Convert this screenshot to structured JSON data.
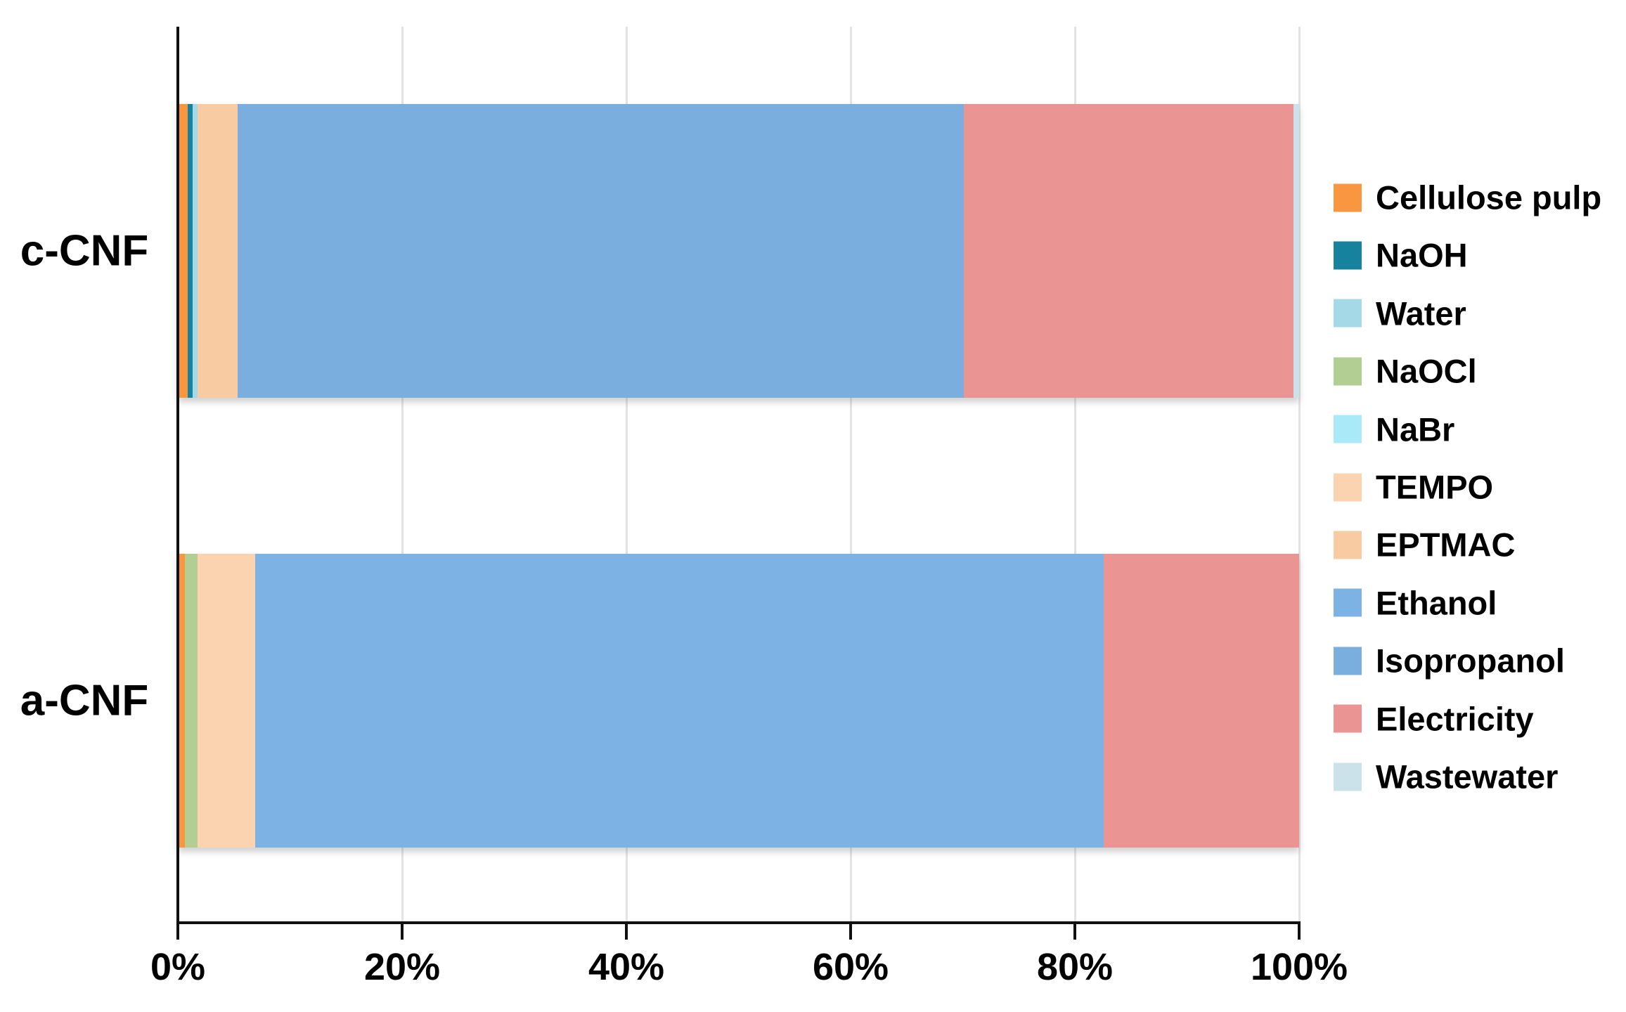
{
  "chart_data": {
    "type": "bar",
    "orientation": "horizontal",
    "stacked": true,
    "title": "",
    "xlabel": "",
    "ylabel": "",
    "categories": [
      "c-CNF",
      "a-CNF"
    ],
    "series": [
      {
        "name": "Cellulose pulp",
        "color": "#F8973F",
        "values": [
          0.9,
          0.65
        ]
      },
      {
        "name": "NaOH",
        "color": "#17829E",
        "values": [
          0.4,
          0
        ]
      },
      {
        "name": "Water",
        "color": "#A6D9E8",
        "values": [
          0.45,
          0
        ]
      },
      {
        "name": "NaOCl",
        "color": "#B3CE93",
        "values": [
          0,
          1.1
        ]
      },
      {
        "name": "NaBr",
        "color": "#A9E9F8",
        "values": [
          0,
          0
        ]
      },
      {
        "name": "TEMPO",
        "color": "#FBD3B0",
        "values": [
          0,
          5.15
        ]
      },
      {
        "name": "EPTMAC",
        "color": "#F9CBA3",
        "values": [
          3.55,
          0
        ]
      },
      {
        "name": "Ethanol",
        "color": "#7CB2E4",
        "values": [
          0,
          75.7
        ]
      },
      {
        "name": "Isopropanol",
        "color": "#7AAEDF",
        "values": [
          64.8,
          0
        ]
      },
      {
        "name": "Electricity",
        "color": "#EA9494",
        "values": [
          29.4,
          17.4
        ]
      },
      {
        "name": "Wastewater",
        "color": "#CBE2EA",
        "values": [
          0.5,
          0
        ]
      }
    ],
    "x_axis": {
      "min": 0,
      "max": 100,
      "tick_values": [
        0,
        20,
        40,
        60,
        80,
        100
      ],
      "tick_labels": [
        "0%",
        "20%",
        "40%",
        "60%",
        "80%",
        "100%"
      ]
    },
    "grid": true,
    "legend_position": "right"
  },
  "colors": {
    "background": "#FFFFFF",
    "axis": "#111111",
    "gridline": "#E3E3E3",
    "text": "#000000"
  }
}
